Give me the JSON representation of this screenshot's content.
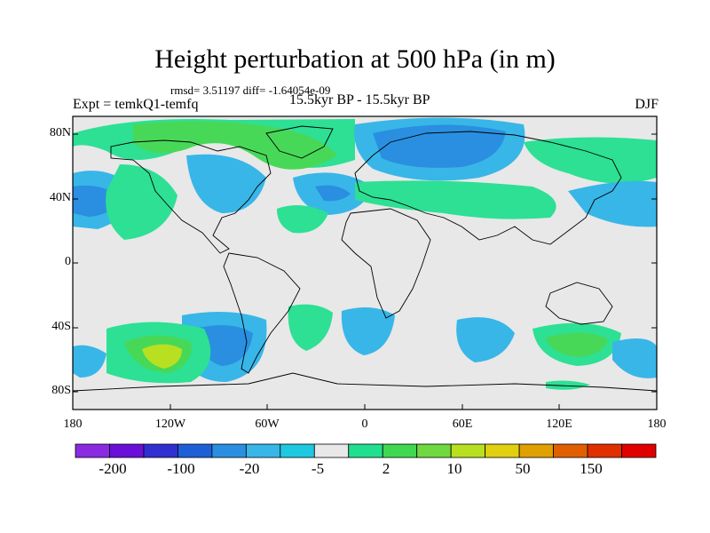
{
  "title": "Height perturbation at 500 hPa (in m)",
  "stats": "rmsd= 3.51197 diff= -1.64054e-09",
  "experiment": "Expt = temkQ1-temfq",
  "period": "15.5kyr BP - 15.5kyr BP",
  "season": "DJF",
  "lat_labels": [
    "80N",
    "40N",
    "0",
    "40S",
    "80S"
  ],
  "lon_labels": [
    "180",
    "120W",
    "60W",
    "0",
    "60E",
    "120E",
    "180"
  ],
  "colorbar": {
    "labels": [
      "-200",
      "-100",
      "-20",
      "-5",
      "2",
      "10",
      "50",
      "150"
    ],
    "colors": [
      "#8a2be2",
      "#6a0fd8",
      "#3030d0",
      "#1e5fd8",
      "#2a8fe0",
      "#38b6e8",
      "#1ec8e0",
      "#e8e8e8",
      "#20e090",
      "#40d850",
      "#70d840",
      "#b8e020",
      "#e0d010",
      "#e0a000",
      "#e06000",
      "#e03000",
      "#e00000"
    ]
  }
}
